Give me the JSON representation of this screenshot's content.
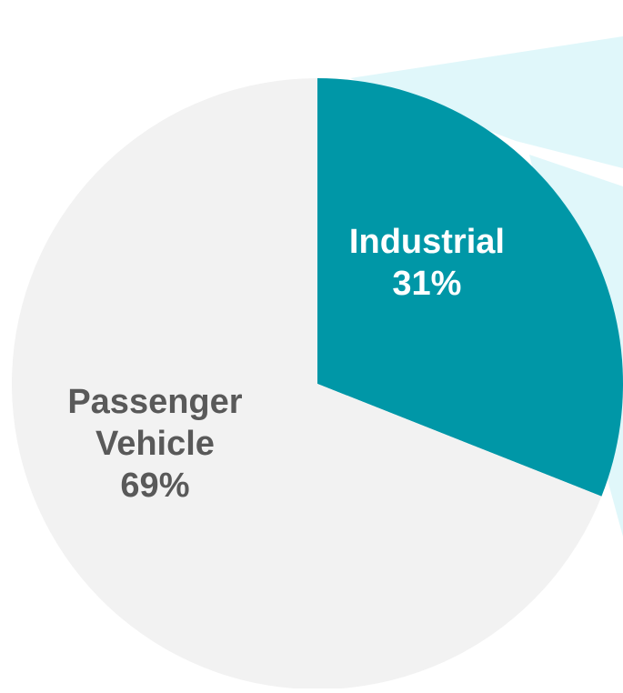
{
  "chart_data": {
    "type": "pie",
    "title": "",
    "slices": [
      {
        "name": "Industrial",
        "value": 31,
        "percent_label": "31%",
        "label_lines": [
          "Industrial",
          "31%"
        ],
        "color": "#0097A7",
        "label_color": "#FFFFFF"
      },
      {
        "name": "Passenger Vehicle",
        "value": 69,
        "percent_label": "69%",
        "label_lines": [
          "Passenger",
          "Vehicle",
          "69%"
        ],
        "color": "#F2F2F2",
        "label_color": "#595959"
      }
    ],
    "start_angle": "12 o'clock",
    "direction": "clockwise",
    "legend": "none",
    "callout_fill_color": "#E0F7FA"
  }
}
